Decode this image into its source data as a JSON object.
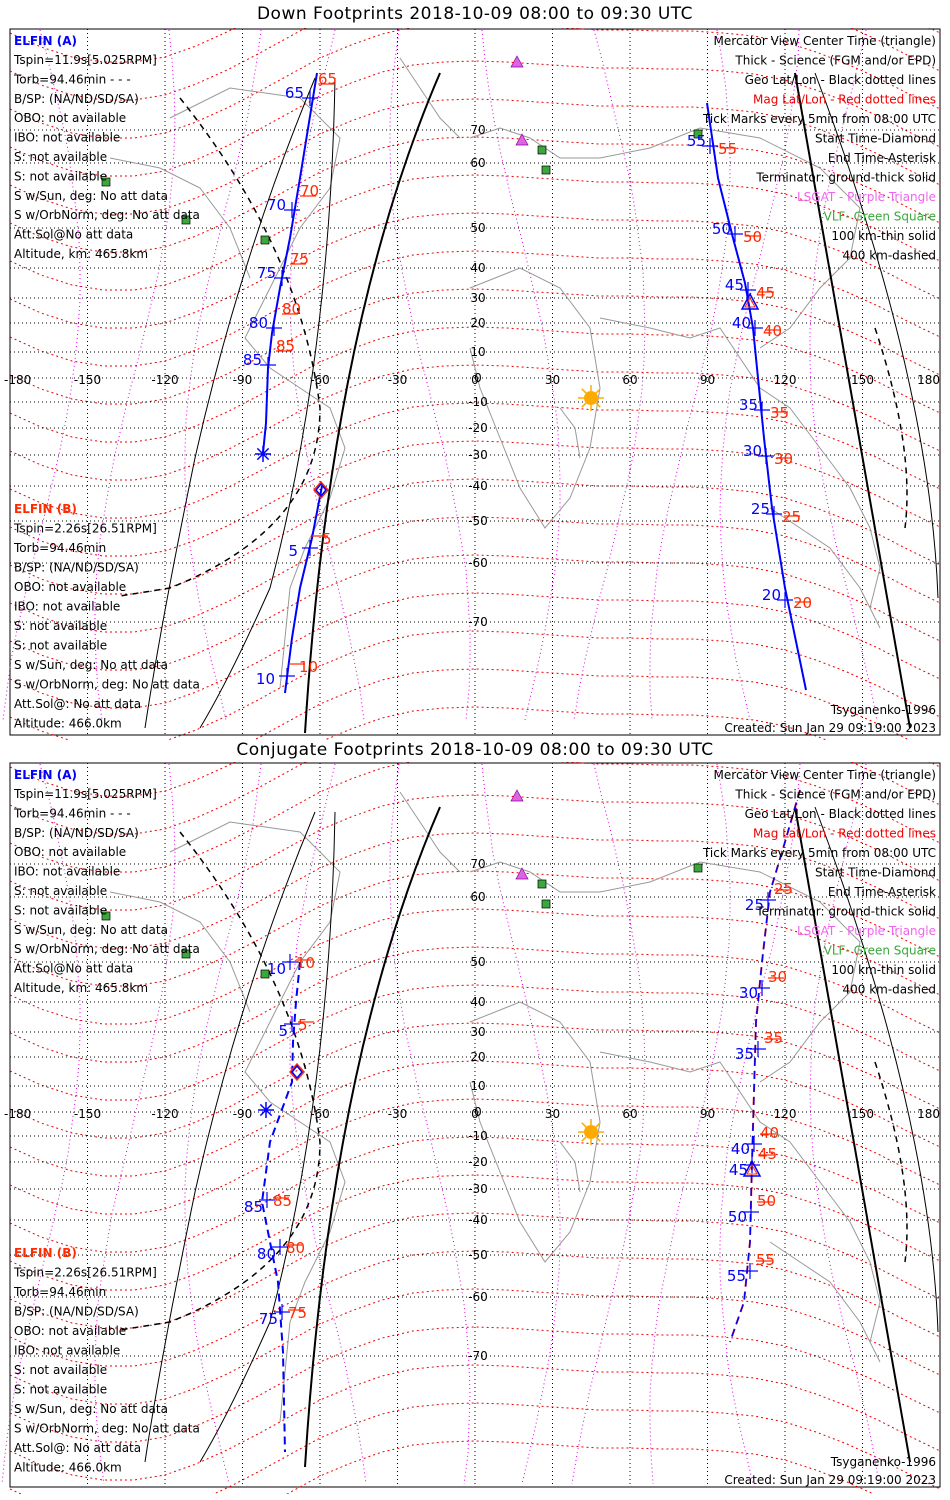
{
  "colors": {
    "blue": "#0000ff",
    "red": "#ff2a00",
    "mag": "#ee0000",
    "purple": "#dd00dd",
    "green": "#3aa83a",
    "sun": "#ffaa00"
  },
  "panels": [
    {
      "title": "Down Footprints 2018-10-09 08:00 to 09:30 UTC",
      "elfin_a": {
        "name": "ELFIN (A)",
        "lines": [
          "Tspin=11.9s[5.025RPM]",
          "Torb=94.46min - - -",
          "B/SP: (NA/ND/SD/SA)",
          "OBO: not available",
          "IBO: not available",
          "S: not available",
          "S: not available",
          "S w/Sun, deg: No att data",
          "S w/OrbNorm, deg: No att data",
          "Att.Sol@No att data",
          "Altitude, km: 465.8km"
        ]
      },
      "elfin_b": {
        "name": "ELFIN (B)",
        "lines": [
          "Tspin=2.26s[26.51RPM]",
          "Torb=94.46min",
          "B/SP: (NA/ND/SD/SA)",
          "OBO: not available",
          "IBO: not available",
          "S: not available",
          "S: not available",
          "S w/Sun, deg: No att data",
          "S w/OrbNorm, deg: No att data",
          "Att.Sol@: No att data",
          "Altitude: 466.0km"
        ]
      },
      "legend": [
        "Mercator View Center Time (triangle)",
        "Thick - Science (FGM and/or EPD)",
        "Geo Lat/Lon - Black dotted lines",
        "Mag Lat/Lon - Red dotted lines",
        "Tick Marks every 5min from 08:00 UTC",
        "Start Time-Diamond",
        "End Time-Asterisk",
        "Terminator: ground-thick solid",
        "LSGAT - Purple Triangle",
        "VLF- Green Square",
        "100 km-thin solid",
        "400 km-dashed"
      ],
      "model": "Tsyganenko-1996",
      "created": "Created: Sun Jan 29 09:19:00 2023",
      "lon_ticks": [
        "-180",
        "-150",
        "-120",
        "-90",
        "-60",
        "-30",
        "0",
        "30",
        "60",
        "90",
        "120",
        "150",
        "180"
      ],
      "lat_ticks": [
        "70",
        "60",
        "50",
        "40",
        "30",
        "20",
        "10",
        "0",
        "-10",
        "-20",
        "-30",
        "-40",
        "-50",
        "-60",
        "-70"
      ],
      "track_a_west": {
        "blue_ticks": [
          "65",
          "70",
          "75",
          "80",
          "85"
        ],
        "red_ticks": [
          "65",
          "70",
          "75",
          "80",
          "85"
        ]
      },
      "track_b_west": {
        "blue_ticks": [
          "5",
          "10"
        ],
        "red_ticks": [
          "5",
          "10"
        ]
      },
      "track_east": {
        "blue_ticks": [
          "55",
          "50",
          "45",
          "40",
          "35",
          "30",
          "25",
          "20"
        ],
        "red_ticks": [
          "55",
          "50",
          "45",
          "40",
          "35",
          "30",
          "25",
          "20"
        ]
      }
    },
    {
      "title": "Conjugate Footprints 2018-10-09 08:00 to 09:30 UTC",
      "elfin_a": {
        "name": "ELFIN (A)",
        "lines": [
          "Tspin=11.9s[5.025RPM]",
          "Torb=94.46min - - -",
          "B/SP: (NA/ND/SD/SA)",
          "OBO: not available",
          "IBO: not available",
          "S: not available",
          "S: not available",
          "S w/Sun, deg: No att data",
          "S w/OrbNorm, deg: No att data",
          "Att.Sol@No att data",
          "Altitude, km: 465.8km"
        ]
      },
      "elfin_b": {
        "name": "ELFIN (B)",
        "lines": [
          "Tspin=2.26s[26.51RPM]",
          "Torb=94.46min",
          "B/SP: (NA/ND/SD/SA)",
          "OBO: not available",
          "IBO: not available",
          "S: not available",
          "S: not available",
          "S w/Sun, deg: No att data",
          "S w/OrbNorm, deg: No att data",
          "Att.Sol@: No att data",
          "Altitude: 466.0km"
        ]
      },
      "legend": [
        "Mercator View Center Time (triangle)",
        "Thick - Science (FGM and/or EPD)",
        "Geo Lat/Lon - Black dotted lines",
        "Mag Lat/Lon - Red dotted lines",
        "Tick Marks every 5min from 08:00 UTC",
        "Start Time-Diamond",
        "End Time-Asterisk",
        "Terminator: ground-thick solid",
        "LSGAT - Purple Triangle",
        "VLF- Green Square",
        "100 km-thin solid",
        "400 km-dashed"
      ],
      "model": "Tsyganenko-1996",
      "created": "Created: Sun Jan 29 09:19:00 2023",
      "lon_ticks": [
        "-180",
        "-150",
        "-120",
        "-90",
        "-60",
        "-30",
        "0",
        "30",
        "60",
        "90",
        "120",
        "150",
        "180"
      ],
      "lat_ticks": [
        "70",
        "60",
        "50",
        "40",
        "30",
        "20",
        "10",
        "0",
        "-10",
        "-20",
        "-30",
        "-40",
        "-50",
        "-60",
        "-70"
      ],
      "track_a_west": {
        "blue_ticks": [
          "10",
          "5",
          "85",
          "80",
          "75"
        ],
        "red_ticks": [
          "10",
          "5",
          "85",
          "80",
          "75"
        ]
      },
      "track_east": {
        "blue_ticks": [
          "25",
          "30",
          "35",
          "40",
          "45",
          "50",
          "55"
        ],
        "red_ticks": [
          "25",
          "30",
          "35",
          "40",
          "45",
          "50",
          "55"
        ]
      }
    }
  ]
}
